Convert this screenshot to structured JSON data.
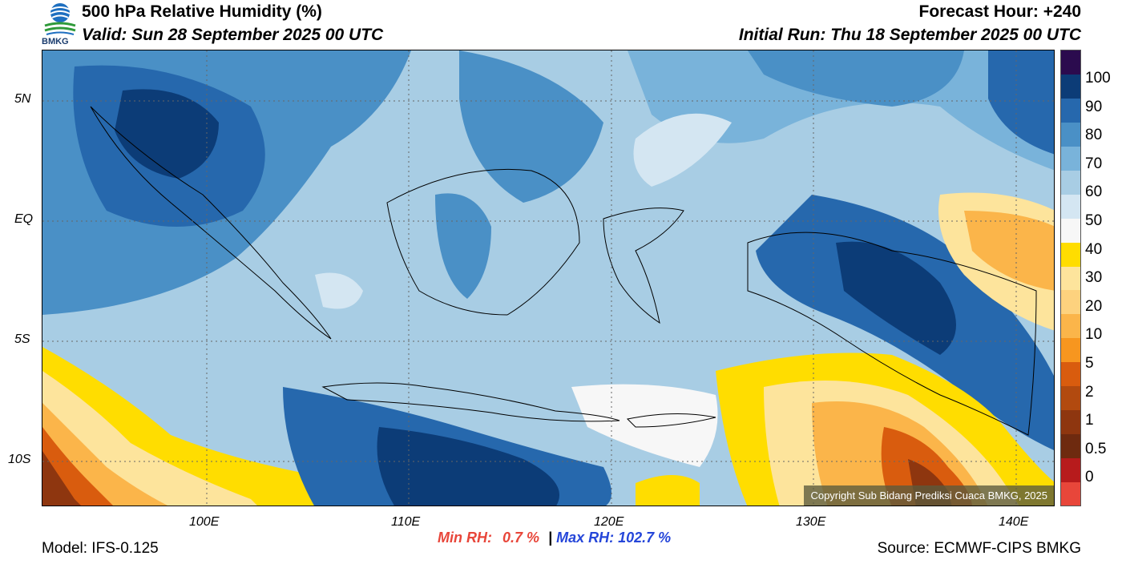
{
  "header": {
    "title": "500 hPa Relative Humidity (%)",
    "valid": "Valid: Sun 28 September 2025 00 UTC",
    "forecast_hour": "Forecast Hour: +240",
    "initial_run": "Initial Run: Thu 18 September 2025 00 UTC",
    "logo_text": "BMKG"
  },
  "map": {
    "lat_labels": [
      "5N",
      "EQ",
      "5S",
      "10S"
    ],
    "lon_labels": [
      "100E",
      "110E",
      "120E",
      "130E",
      "140E"
    ],
    "copyright": "Copyright Sub Bidang Prediksi Cuaca BMKG, 2025"
  },
  "colorbar": {
    "labels": [
      "100",
      "90",
      "80",
      "70",
      "60",
      "50",
      "40",
      "30",
      "20",
      "10",
      "5",
      "2",
      "1",
      "0.5",
      "0"
    ],
    "colors": [
      "#e8463a",
      "#b71b1c",
      "#6e2a0f",
      "#8e360f",
      "#b24a0f",
      "#d95c0e",
      "#f7961f",
      "#fbb54a",
      "#fdd27e",
      "#fde49c",
      "#ffdd00",
      "#f7f7f7",
      "#d4e6f2",
      "#a8cde4",
      "#79b3da",
      "#4a90c6",
      "#2668ad",
      "#0c3c77",
      "#2b0b4e"
    ]
  },
  "stats": {
    "min_label": "Min RH:",
    "min_value": "0.7 %",
    "separator": "|",
    "max_label": "Max RH:",
    "max_value": "102.7 %"
  },
  "footer": {
    "model": "Model: IFS-0.125",
    "source": "Source: ECMWF-CIPS BMKG"
  }
}
